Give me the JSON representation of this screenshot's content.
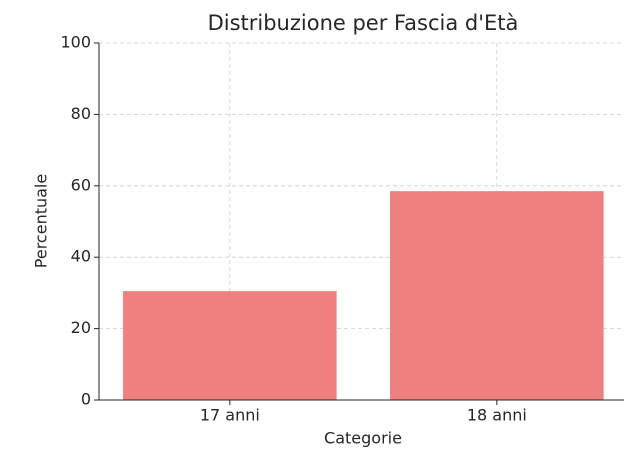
{
  "chart_data": {
    "type": "bar",
    "title": "Distribuzione per Fascia d'Età",
    "xlabel": "Categorie",
    "ylabel": "Percentuale",
    "categories": [
      "17 anni",
      "18 anni"
    ],
    "values": [
      30.5,
      58.5
    ],
    "color": "#f08080",
    "ylim": [
      0,
      100
    ],
    "yticks": [
      0,
      20,
      40,
      60,
      80,
      100
    ],
    "grid": true
  }
}
